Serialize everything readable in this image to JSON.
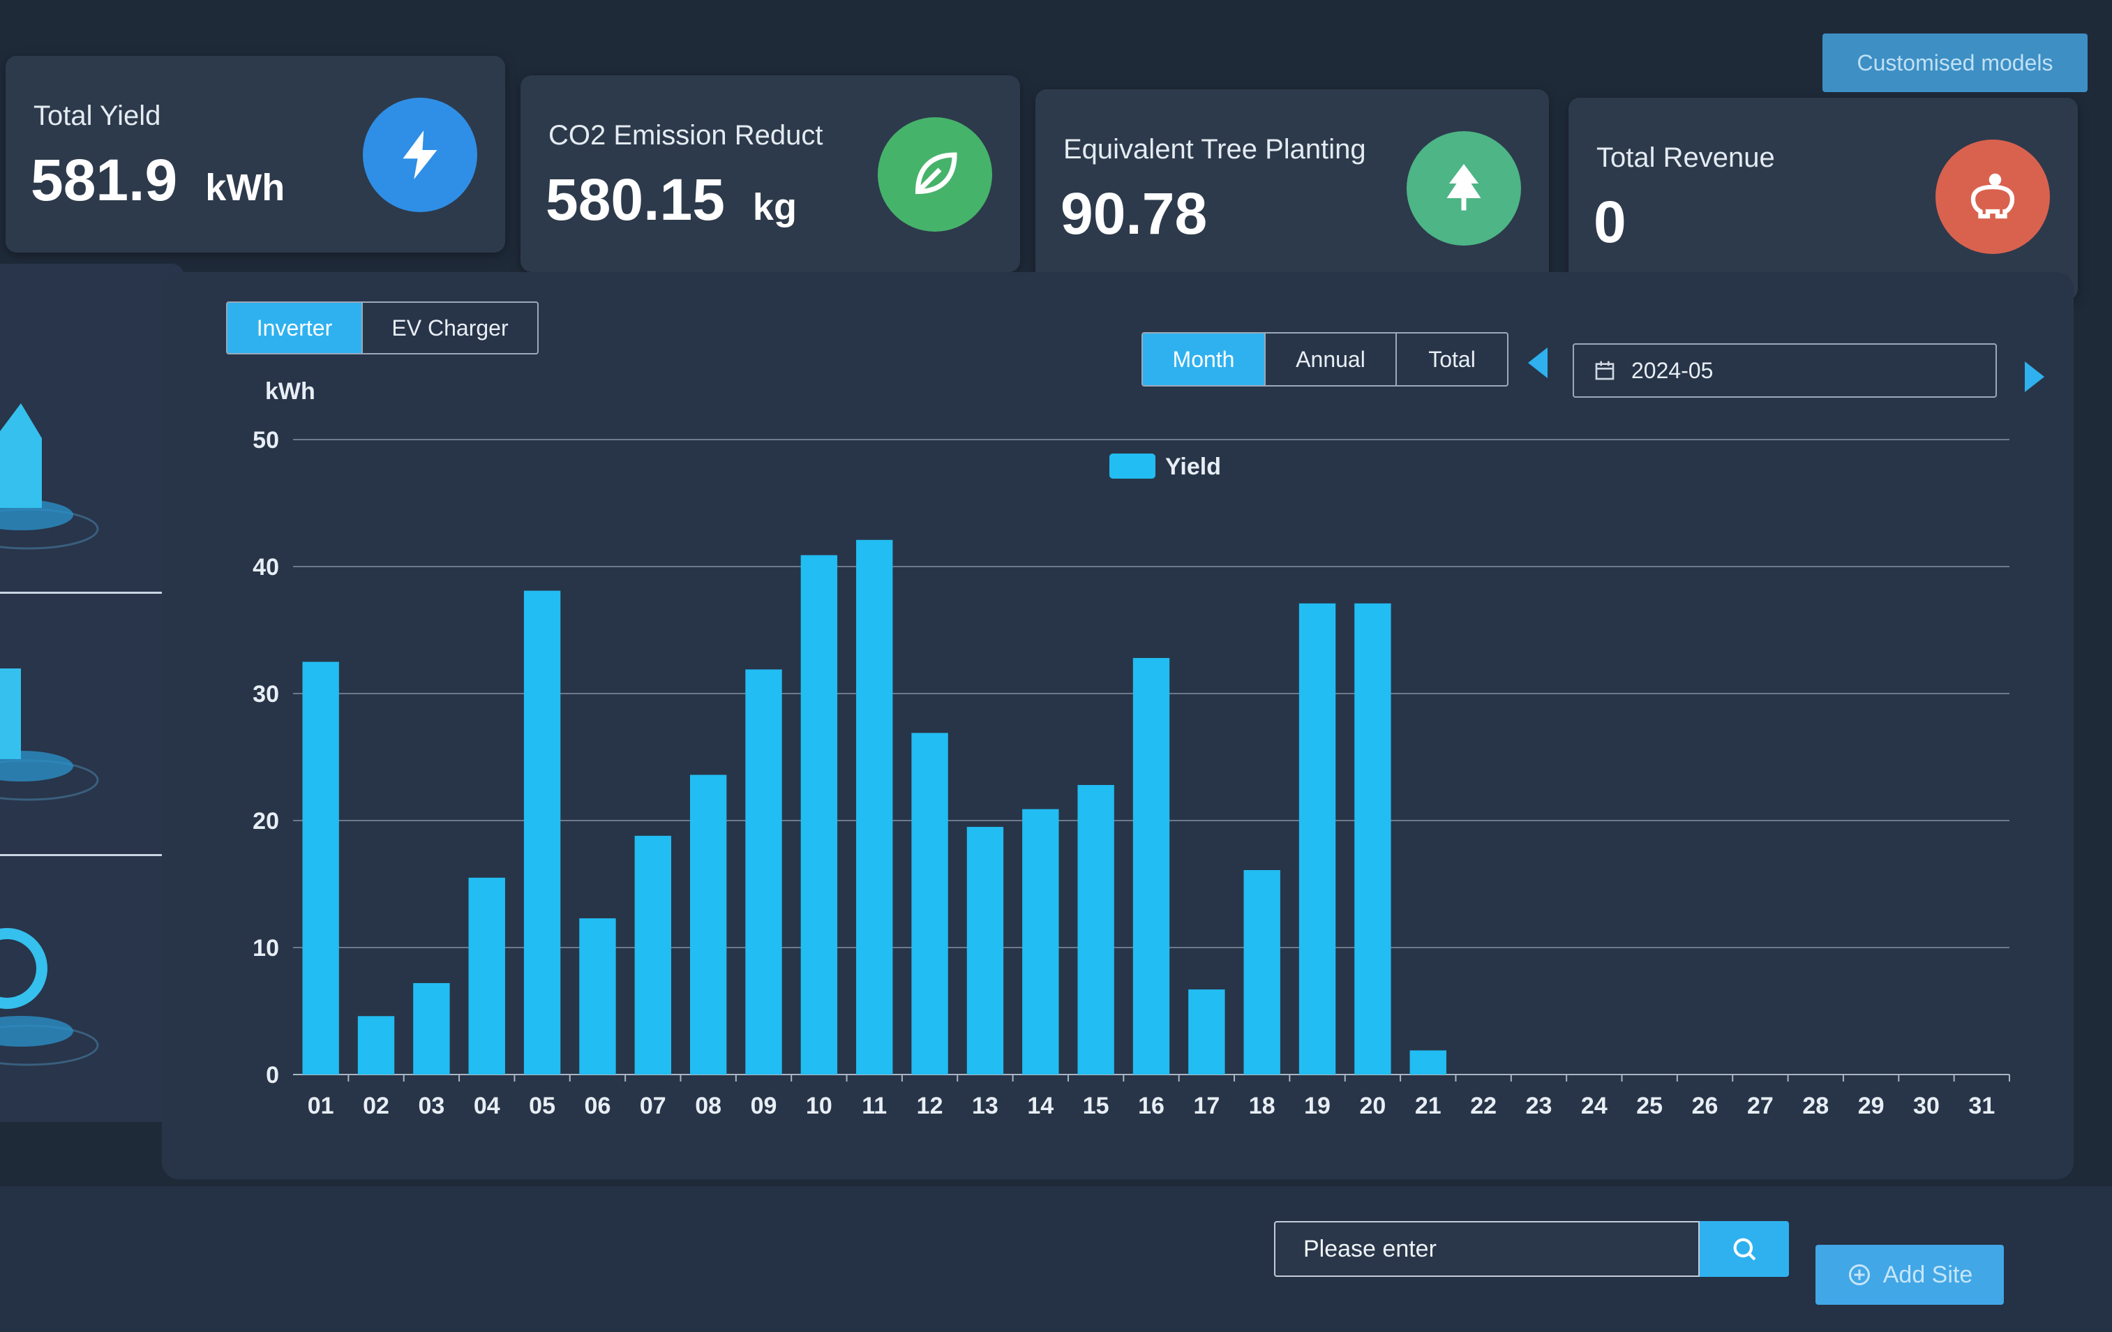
{
  "header": {
    "customise_label": "Customised models"
  },
  "stats": [
    {
      "label": "Total Yield",
      "value": "581.9",
      "unit": "kWh",
      "icon": "lightning-icon",
      "color": "#2f8fe6"
    },
    {
      "label": "CO2 Emission Reduct",
      "value": "580.15",
      "unit": "kg",
      "icon": "leaf-icon",
      "color": "#46b36b"
    },
    {
      "label": "Equivalent Tree Planting",
      "value": "90.78",
      "unit": "",
      "icon": "tree-icon",
      "color": "#4db586"
    },
    {
      "label": "Total Revenue",
      "value": "0",
      "unit": "",
      "icon": "piggy-bank-icon",
      "color": "#d9624f"
    }
  ],
  "device_tabs": {
    "items": [
      "Inverter",
      "EV Charger"
    ],
    "active": "Inverter"
  },
  "period_tabs": {
    "items": [
      "Month",
      "Annual",
      "Total"
    ],
    "active": "Month"
  },
  "date_picker": {
    "value": "2024-05",
    "icon": "calendar-icon"
  },
  "search": {
    "placeholder": "Please enter",
    "button_icon": "search-icon"
  },
  "add_site_label": "Add Site",
  "colors": {
    "accent": "#2fb1ef",
    "bar": "#22bdf2",
    "panel": "#283548",
    "background": "#1f2a39"
  },
  "chart_data": {
    "type": "bar",
    "ylabel": "kWh",
    "ylim": [
      0,
      50
    ],
    "yticks": [
      0,
      10,
      20,
      30,
      40,
      50
    ],
    "legend": "top-center",
    "grid": true,
    "categories": [
      "01",
      "02",
      "03",
      "04",
      "05",
      "06",
      "07",
      "08",
      "09",
      "10",
      "11",
      "12",
      "13",
      "14",
      "15",
      "16",
      "17",
      "18",
      "19",
      "20",
      "21",
      "22",
      "23",
      "24",
      "25",
      "26",
      "27",
      "28",
      "29",
      "30",
      "31"
    ],
    "series": [
      {
        "name": "Yield",
        "values": [
          32.5,
          4.6,
          7.2,
          15.5,
          38.1,
          12.3,
          18.8,
          23.6,
          31.9,
          40.9,
          42.1,
          26.9,
          19.5,
          20.9,
          22.8,
          32.8,
          6.7,
          16.1,
          37.1,
          37.1,
          1.9,
          0,
          0,
          0,
          0,
          0,
          0,
          0,
          0,
          0,
          0
        ]
      }
    ]
  }
}
